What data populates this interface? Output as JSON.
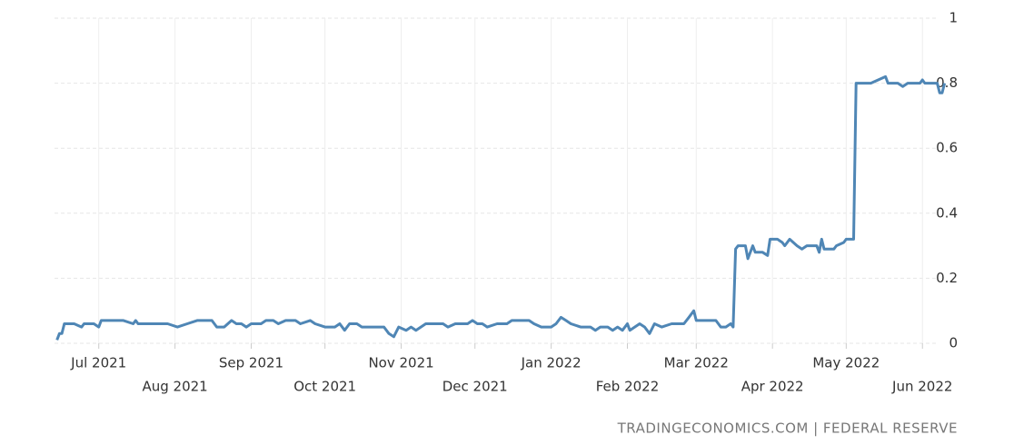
{
  "chart_data": {
    "type": "line",
    "source": "TRADINGECONOMICS.COM | FEDERAL RESERVE",
    "color": "#4f86b5",
    "grid": true,
    "xlim": [
      -18,
      346
    ],
    "xticks": [
      {
        "value": 0,
        "label": "Jul 2021"
      },
      {
        "value": 31,
        "label": "Aug 2021"
      },
      {
        "value": 62,
        "label": "Sep 2021"
      },
      {
        "value": 92,
        "label": "Oct 2021"
      },
      {
        "value": 123,
        "label": "Nov 2021"
      },
      {
        "value": 153,
        "label": "Dec 2021"
      },
      {
        "value": 184,
        "label": "Jan 2022"
      },
      {
        "value": 215,
        "label": "Feb 2022"
      },
      {
        "value": 243,
        "label": "Mar 2022"
      },
      {
        "value": 274,
        "label": "Apr 2022"
      },
      {
        "value": 304,
        "label": "May 2022"
      },
      {
        "value": 335,
        "label": "Jun 2022"
      }
    ],
    "ylim": [
      0,
      1
    ],
    "yticks": [
      0,
      0.2,
      0.4,
      0.6,
      0.8,
      1
    ],
    "x": [
      -17,
      -16,
      -15,
      -14,
      -10,
      -7,
      -6,
      -2,
      0,
      1,
      10,
      14,
      15,
      16,
      20,
      28,
      32,
      36,
      40,
      46,
      48,
      51,
      54,
      56,
      58,
      60,
      62,
      66,
      68,
      71,
      73,
      76,
      80,
      82,
      86,
      88,
      92,
      96,
      98,
      100,
      102,
      105,
      107,
      116,
      118,
      120,
      122,
      125,
      127,
      129,
      133,
      140,
      142,
      145,
      150,
      152,
      154,
      156,
      158,
      162,
      166,
      168,
      175,
      177,
      180,
      184,
      186,
      188,
      190,
      192,
      196,
      200,
      202,
      204,
      207,
      209,
      211,
      213,
      215,
      216,
      218,
      220,
      222,
      224,
      226,
      229,
      233,
      238,
      240,
      242,
      243,
      251,
      253,
      255,
      257,
      258,
      259,
      260,
      263,
      264,
      266,
      267,
      270,
      272,
      273,
      276,
      278,
      279,
      281,
      284,
      286,
      288,
      292,
      293,
      294,
      295,
      299,
      300,
      303,
      304,
      307,
      308,
      314,
      317,
      320,
      321,
      325,
      327,
      329,
      334,
      335,
      336,
      341,
      342,
      343,
      344
    ],
    "values": [
      0.01,
      0.03,
      0.03,
      0.06,
      0.06,
      0.05,
      0.06,
      0.06,
      0.05,
      0.07,
      0.07,
      0.06,
      0.07,
      0.06,
      0.06,
      0.06,
      0.05,
      0.06,
      0.07,
      0.07,
      0.05,
      0.05,
      0.07,
      0.06,
      0.06,
      0.05,
      0.06,
      0.06,
      0.07,
      0.07,
      0.06,
      0.07,
      0.07,
      0.06,
      0.07,
      0.06,
      0.05,
      0.05,
      0.06,
      0.04,
      0.06,
      0.06,
      0.05,
      0.05,
      0.03,
      0.02,
      0.05,
      0.04,
      0.05,
      0.04,
      0.06,
      0.06,
      0.05,
      0.06,
      0.06,
      0.07,
      0.06,
      0.06,
      0.05,
      0.06,
      0.06,
      0.07,
      0.07,
      0.06,
      0.05,
      0.05,
      0.06,
      0.08,
      0.07,
      0.06,
      0.05,
      0.05,
      0.04,
      0.05,
      0.05,
      0.04,
      0.05,
      0.04,
      0.06,
      0.04,
      0.05,
      0.06,
      0.05,
      0.03,
      0.06,
      0.05,
      0.06,
      0.06,
      0.08,
      0.1,
      0.07,
      0.07,
      0.05,
      0.05,
      0.06,
      0.05,
      0.29,
      0.3,
      0.3,
      0.26,
      0.3,
      0.28,
      0.28,
      0.27,
      0.32,
      0.32,
      0.31,
      0.3,
      0.32,
      0.3,
      0.29,
      0.3,
      0.3,
      0.28,
      0.32,
      0.29,
      0.29,
      0.3,
      0.31,
      0.32,
      0.32,
      0.8,
      0.8,
      0.81,
      0.82,
      0.8,
      0.8,
      0.79,
      0.8,
      0.8,
      0.81,
      0.8,
      0.8,
      0.77,
      0.77,
      0.8
    ]
  }
}
